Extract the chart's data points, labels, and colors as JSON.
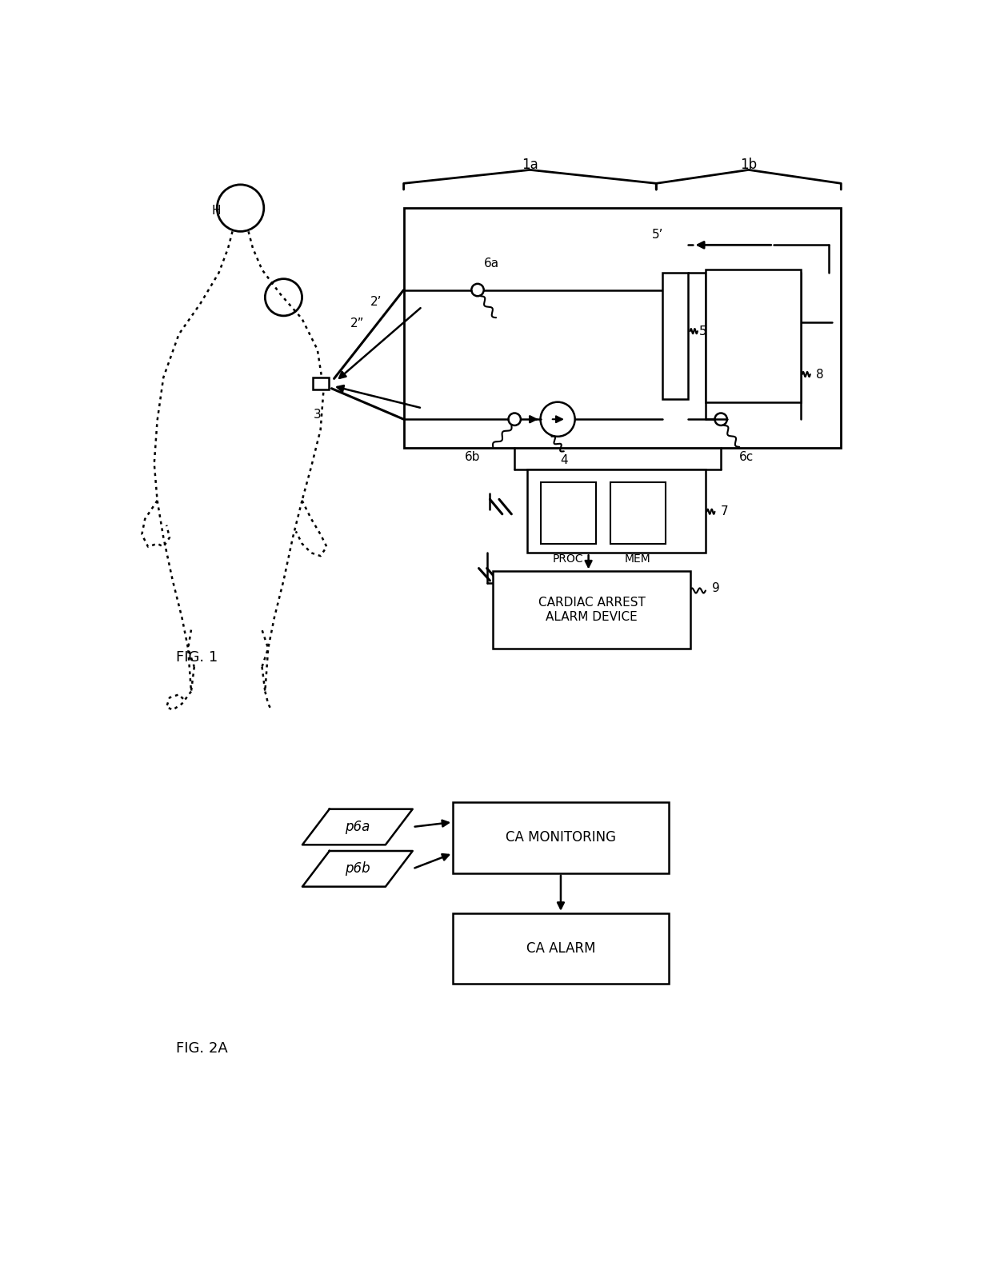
{
  "fig_width": 12.4,
  "fig_height": 16.03,
  "bg_color": "#ffffff",
  "line_color": "#000000",
  "fig1_label": "FIG. 1",
  "fig2a_label": "FIG. 2A",
  "label_1a": "1a",
  "label_1b": "1b",
  "label_H": "H",
  "label_2p": "2’",
  "label_2pp": "2”",
  "label_3": "3",
  "label_4": "4",
  "label_5": "5",
  "label_5p": "5’",
  "label_6a": "6a",
  "label_6b": "6b",
  "label_6c": "6c",
  "label_7": "7",
  "label_8": "8",
  "label_9": "9",
  "label_proc": "PROC",
  "label_mem": "MEM",
  "ca_alarm_device_text": "CARDIAC ARREST\nALARM DEVICE",
  "ca_monitoring_text": "CA MONITORING",
  "ca_alarm_text": "CA ALARM",
  "label_p6a": "p6a",
  "label_p6b": "p6b"
}
